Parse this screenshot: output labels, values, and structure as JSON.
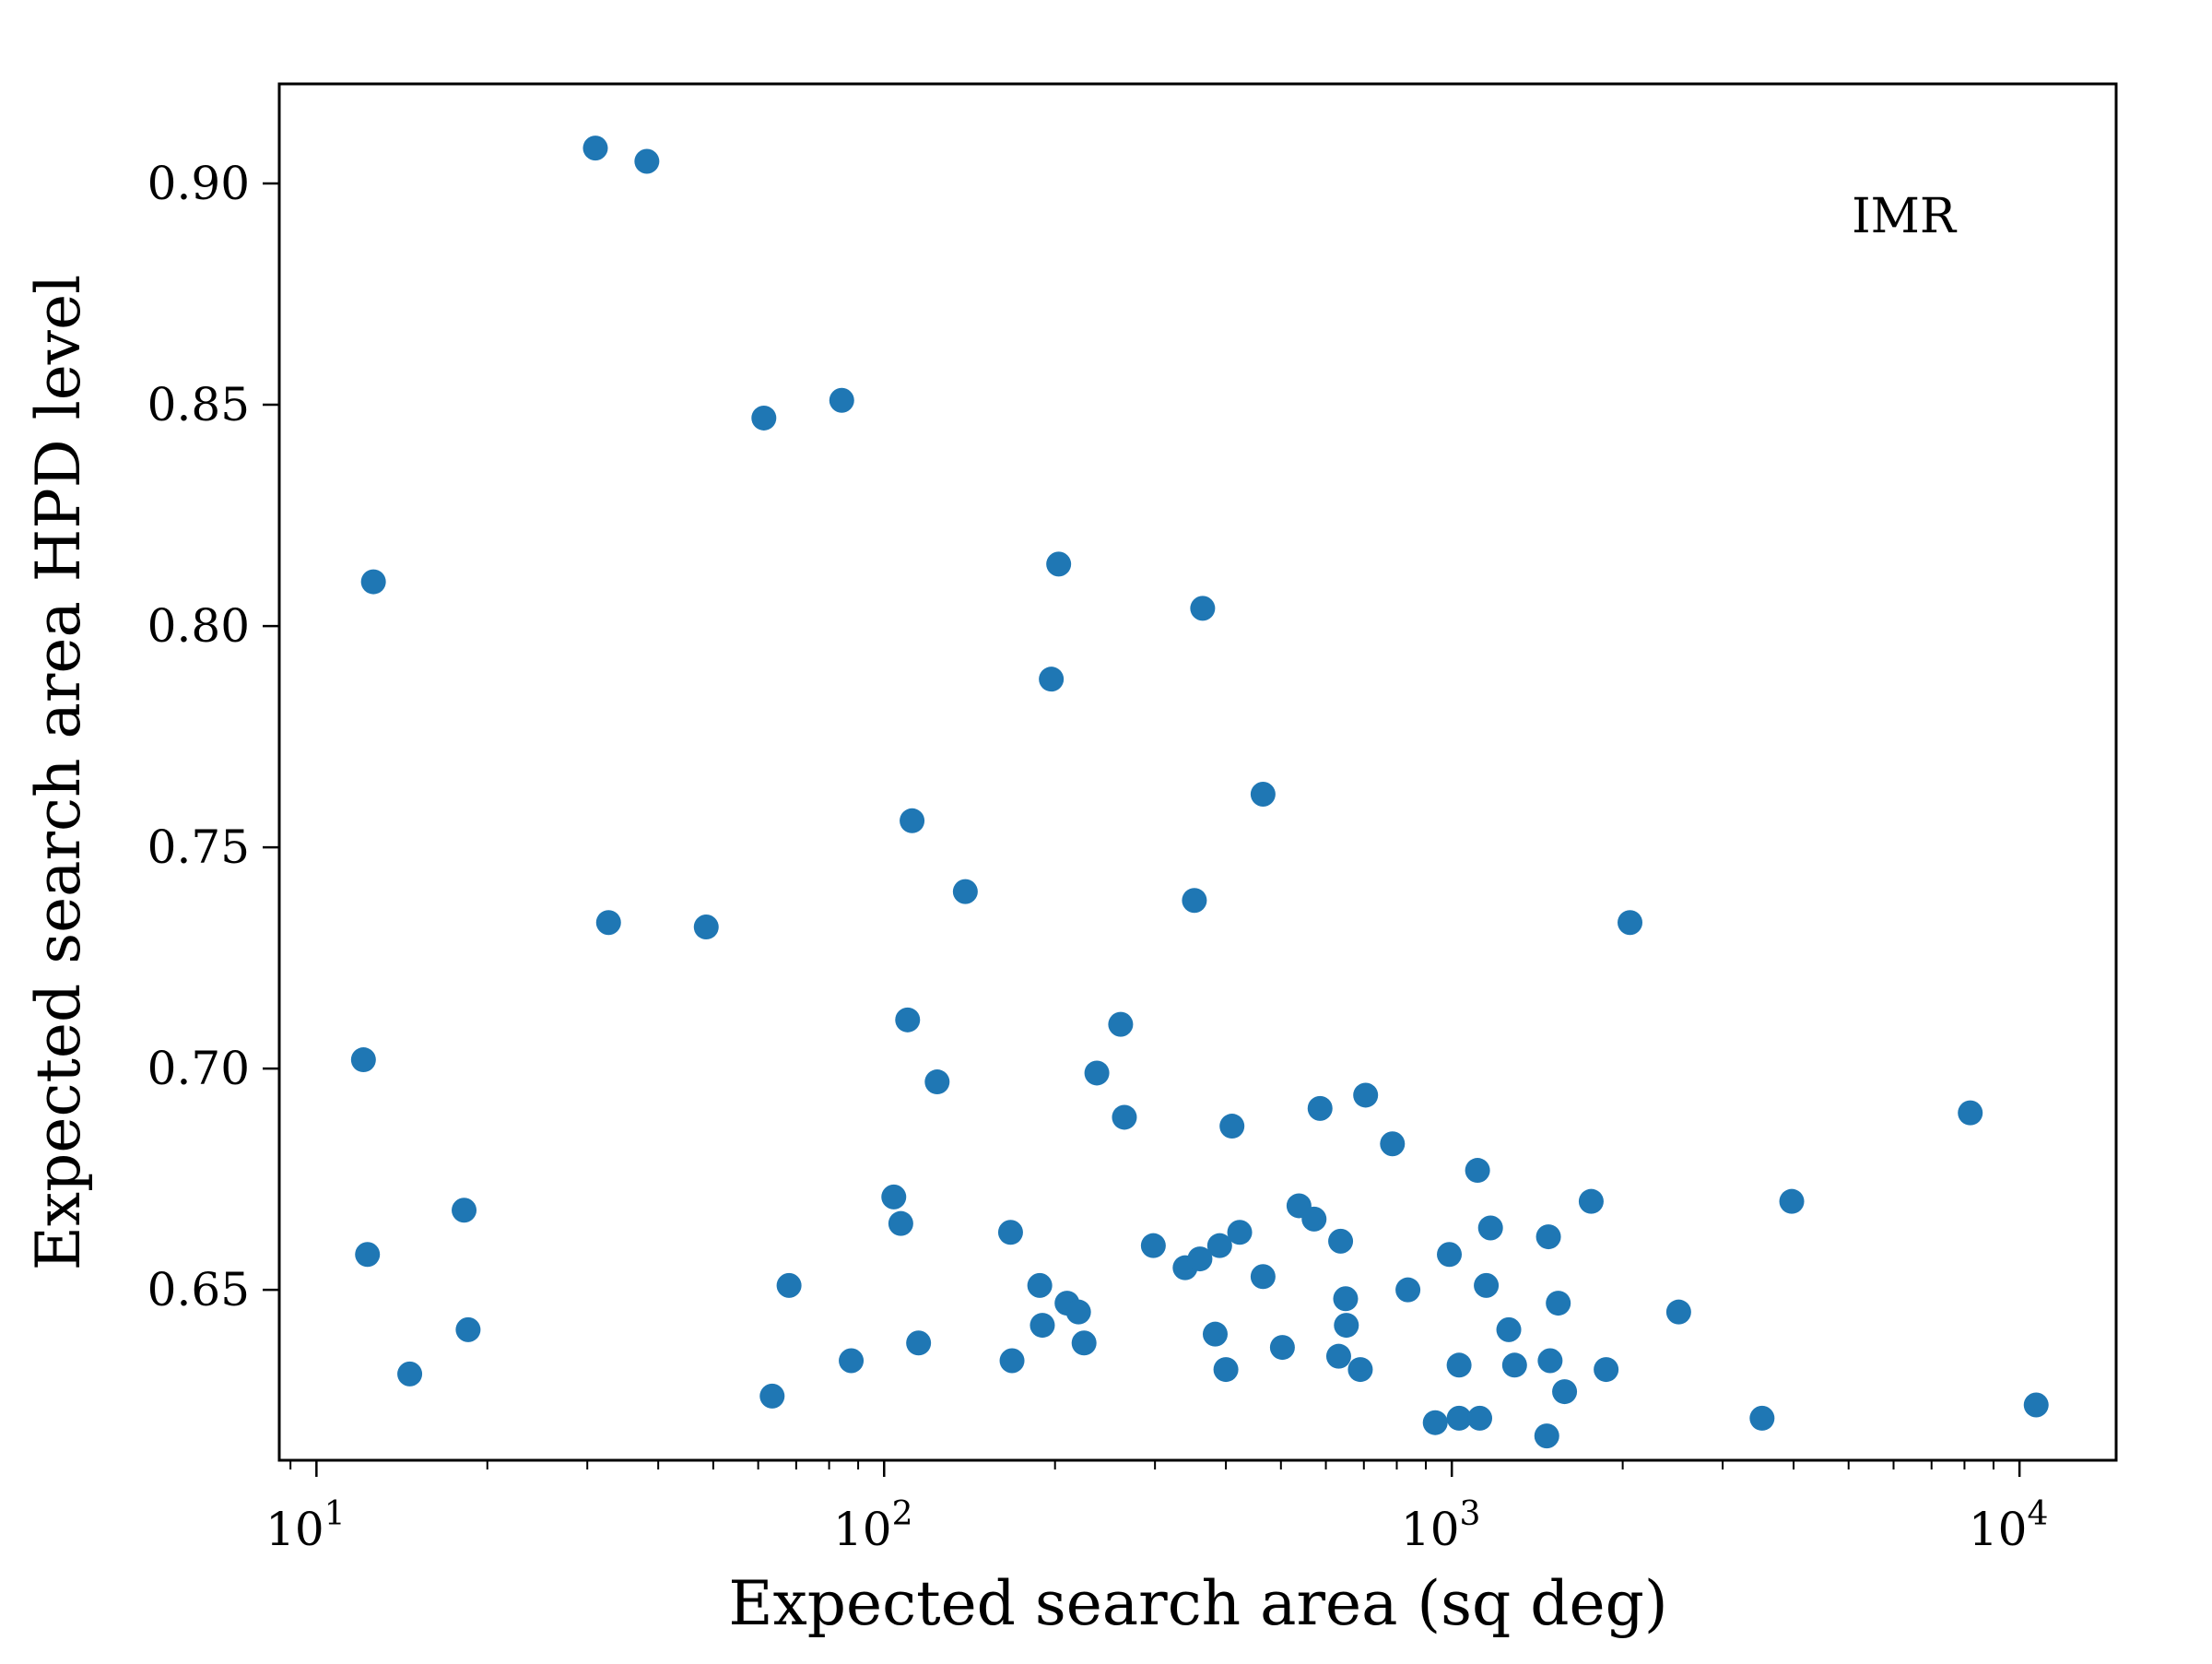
{
  "chart_data": {
    "type": "scatter",
    "title": "",
    "xlabel": "Expected search area (sq deg)",
    "ylabel": "Expected search area HPD level",
    "xscale": "log",
    "xlim": [
      8.6,
      14800
    ],
    "ylim": [
      0.6115,
      0.9225
    ],
    "x_ticks": [
      {
        "value": 10,
        "base": "10",
        "exp": "1"
      },
      {
        "value": 100,
        "base": "10",
        "exp": "2"
      },
      {
        "value": 1000,
        "base": "10",
        "exp": "3"
      },
      {
        "value": 10000,
        "base": "10",
        "exp": "4"
      }
    ],
    "y_ticks": [
      {
        "value": 0.65,
        "label": "0.65"
      },
      {
        "value": 0.7,
        "label": "0.70"
      },
      {
        "value": 0.75,
        "label": "0.75"
      },
      {
        "value": 0.8,
        "label": "0.80"
      },
      {
        "value": 0.85,
        "label": "0.85"
      },
      {
        "value": 0.9,
        "label": "0.90"
      }
    ],
    "annotation": {
      "text": "IMR",
      "position": "top-right"
    },
    "grid": false,
    "marker_color": "#1f77b4",
    "points": [
      {
        "x": 31.0,
        "y": 0.908
      },
      {
        "x": 38.2,
        "y": 0.905
      },
      {
        "x": 61.4,
        "y": 0.847
      },
      {
        "x": 84.2,
        "y": 0.851
      },
      {
        "x": 12.6,
        "y": 0.81
      },
      {
        "x": 203,
        "y": 0.814
      },
      {
        "x": 364,
        "y": 0.804
      },
      {
        "x": 197,
        "y": 0.788
      },
      {
        "x": 112,
        "y": 0.756
      },
      {
        "x": 465,
        "y": 0.762
      },
      {
        "x": 139,
        "y": 0.74
      },
      {
        "x": 352,
        "y": 0.738
      },
      {
        "x": 32.7,
        "y": 0.733
      },
      {
        "x": 48.6,
        "y": 0.732
      },
      {
        "x": 2060,
        "y": 0.733
      },
      {
        "x": 12.1,
        "y": 0.702
      },
      {
        "x": 110,
        "y": 0.711
      },
      {
        "x": 124,
        "y": 0.697
      },
      {
        "x": 237,
        "y": 0.699
      },
      {
        "x": 261,
        "y": 0.71
      },
      {
        "x": 265,
        "y": 0.689
      },
      {
        "x": 410,
        "y": 0.687
      },
      {
        "x": 586,
        "y": 0.691
      },
      {
        "x": 705,
        "y": 0.694
      },
      {
        "x": 786,
        "y": 0.683
      },
      {
        "x": 8190,
        "y": 0.69
      },
      {
        "x": 18.2,
        "y": 0.668
      },
      {
        "x": 12.3,
        "y": 0.658
      },
      {
        "x": 104,
        "y": 0.671
      },
      {
        "x": 107,
        "y": 0.665
      },
      {
        "x": 167,
        "y": 0.663
      },
      {
        "x": 1110,
        "y": 0.677
      },
      {
        "x": 1760,
        "y": 0.67
      },
      {
        "x": 3970,
        "y": 0.67
      },
      {
        "x": 298,
        "y": 0.66
      },
      {
        "x": 339,
        "y": 0.655
      },
      {
        "x": 360,
        "y": 0.657
      },
      {
        "x": 390,
        "y": 0.66
      },
      {
        "x": 423,
        "y": 0.663
      },
      {
        "x": 465,
        "y": 0.653
      },
      {
        "x": 538,
        "y": 0.669
      },
      {
        "x": 572,
        "y": 0.666
      },
      {
        "x": 637,
        "y": 0.661
      },
      {
        "x": 990,
        "y": 0.658
      },
      {
        "x": 1170,
        "y": 0.664
      },
      {
        "x": 1480,
        "y": 0.662
      },
      {
        "x": 68.0,
        "y": 0.651
      },
      {
        "x": 188,
        "y": 0.651
      },
      {
        "x": 650,
        "y": 0.648
      },
      {
        "x": 837,
        "y": 0.65
      },
      {
        "x": 1150,
        "y": 0.651
      },
      {
        "x": 1540,
        "y": 0.647
      },
      {
        "x": 2510,
        "y": 0.645
      },
      {
        "x": 18.5,
        "y": 0.641
      },
      {
        "x": 14.6,
        "y": 0.631
      },
      {
        "x": 115,
        "y": 0.638
      },
      {
        "x": 190,
        "y": 0.642
      },
      {
        "x": 210,
        "y": 0.647
      },
      {
        "x": 220,
        "y": 0.645
      },
      {
        "x": 225,
        "y": 0.638
      },
      {
        "x": 87.5,
        "y": 0.634
      },
      {
        "x": 168,
        "y": 0.634
      },
      {
        "x": 63.5,
        "y": 0.626
      },
      {
        "x": 383,
        "y": 0.64
      },
      {
        "x": 400,
        "y": 0.632
      },
      {
        "x": 503,
        "y": 0.637
      },
      {
        "x": 632,
        "y": 0.635
      },
      {
        "x": 652,
        "y": 0.642
      },
      {
        "x": 690,
        "y": 0.632
      },
      {
        "x": 1030,
        "y": 0.633
      },
      {
        "x": 1260,
        "y": 0.641
      },
      {
        "x": 1290,
        "y": 0.633
      },
      {
        "x": 1490,
        "y": 0.634
      },
      {
        "x": 1580,
        "y": 0.627
      },
      {
        "x": 1870,
        "y": 0.632
      },
      {
        "x": 935,
        "y": 0.62
      },
      {
        "x": 1030,
        "y": 0.621
      },
      {
        "x": 1120,
        "y": 0.621
      },
      {
        "x": 1470,
        "y": 0.617
      },
      {
        "x": 3520,
        "y": 0.621
      },
      {
        "x": 10700,
        "y": 0.624
      }
    ]
  }
}
